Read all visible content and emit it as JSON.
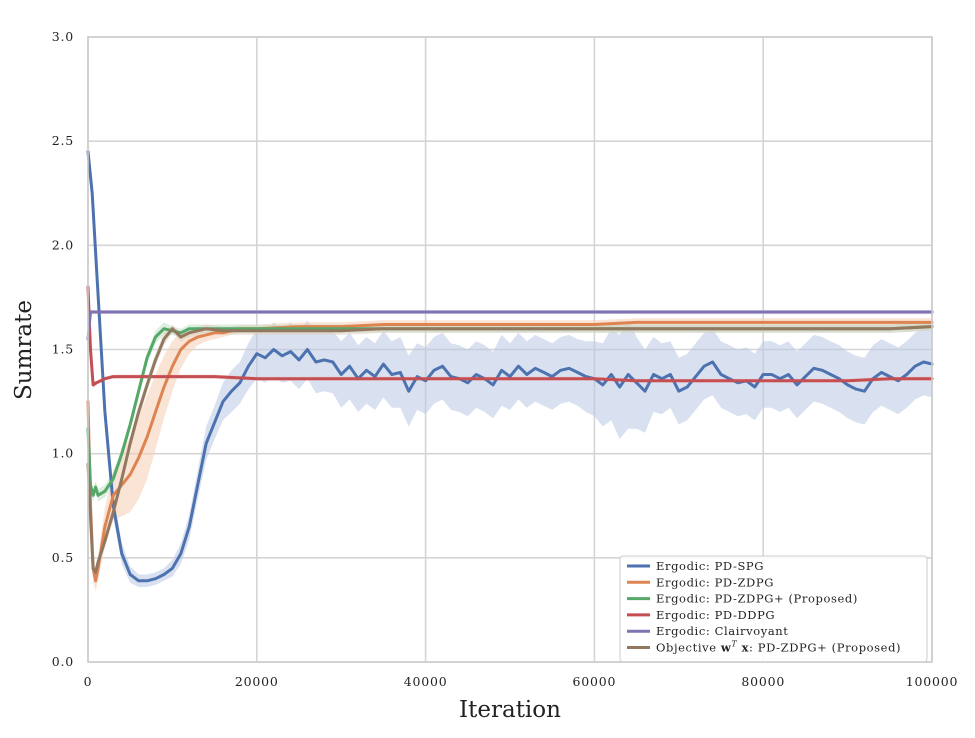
{
  "chart_data": {
    "type": "line",
    "title": "",
    "xlabel": "Iteration",
    "ylabel": "Sumrate",
    "xlim": [
      0,
      100000
    ],
    "ylim": [
      0.0,
      3.0
    ],
    "xticks": [
      0,
      20000,
      40000,
      60000,
      80000,
      100000
    ],
    "xtick_labels": [
      "0",
      "20000",
      "40000",
      "60000",
      "80000",
      "100000"
    ],
    "yticks": [
      0.0,
      0.5,
      1.0,
      1.5,
      2.0,
      2.5,
      3.0
    ],
    "ytick_labels": [
      "0.0",
      "0.5",
      "1.0",
      "1.5",
      "2.0",
      "2.5",
      "3.0"
    ],
    "grid": true,
    "legend_position": "bottom-right",
    "series": [
      {
        "name": "Ergodic: PD-SPG",
        "color": "#4c72b0",
        "band_color": "#b9c8e6",
        "x": [
          0,
          500,
          1000,
          2000,
          3000,
          4000,
          5000,
          6000,
          7000,
          8000,
          9000,
          10000,
          11000,
          12000,
          13000,
          14000,
          15000,
          16000,
          17000,
          18000,
          19000,
          20000,
          21000,
          22000,
          23000,
          24000,
          25000,
          26000,
          27000,
          28000,
          29000,
          30000,
          31000,
          32000,
          33000,
          34000,
          35000,
          36000,
          37000,
          38000,
          39000,
          40000,
          41000,
          42000,
          43000,
          44000,
          45000,
          46000,
          47000,
          48000,
          49000,
          50000,
          51000,
          52000,
          53000,
          54000,
          55000,
          56000,
          57000,
          58000,
          59000,
          60000,
          61000,
          62000,
          63000,
          64000,
          65000,
          66000,
          67000,
          68000,
          69000,
          70000,
          71000,
          72000,
          73000,
          74000,
          75000,
          76000,
          77000,
          78000,
          79000,
          80000,
          81000,
          82000,
          83000,
          84000,
          85000,
          86000,
          87000,
          88000,
          89000,
          90000,
          91000,
          92000,
          93000,
          94000,
          95000,
          96000,
          97000,
          98000,
          99000,
          100000
        ],
        "y": [
          2.45,
          2.25,
          1.9,
          1.2,
          0.75,
          0.52,
          0.42,
          0.39,
          0.39,
          0.4,
          0.42,
          0.45,
          0.52,
          0.65,
          0.85,
          1.05,
          1.15,
          1.25,
          1.3,
          1.34,
          1.42,
          1.48,
          1.46,
          1.5,
          1.47,
          1.49,
          1.45,
          1.5,
          1.44,
          1.45,
          1.44,
          1.38,
          1.42,
          1.36,
          1.4,
          1.37,
          1.43,
          1.38,
          1.39,
          1.3,
          1.37,
          1.35,
          1.4,
          1.42,
          1.37,
          1.36,
          1.34,
          1.38,
          1.36,
          1.33,
          1.4,
          1.37,
          1.42,
          1.38,
          1.41,
          1.39,
          1.37,
          1.4,
          1.41,
          1.39,
          1.37,
          1.36,
          1.33,
          1.38,
          1.32,
          1.38,
          1.34,
          1.3,
          1.38,
          1.36,
          1.38,
          1.3,
          1.32,
          1.37,
          1.42,
          1.44,
          1.38,
          1.36,
          1.34,
          1.35,
          1.32,
          1.38,
          1.38,
          1.36,
          1.38,
          1.33,
          1.37,
          1.41,
          1.4,
          1.38,
          1.36,
          1.33,
          1.31,
          1.3,
          1.36,
          1.39,
          1.37,
          1.35,
          1.38,
          1.42,
          1.44,
          1.43
        ],
        "band": [
          0.0,
          0.03,
          0.05,
          0.06,
          0.06,
          0.05,
          0.04,
          0.03,
          0.03,
          0.03,
          0.03,
          0.04,
          0.05,
          0.06,
          0.07,
          0.08,
          0.08,
          0.09,
          0.1,
          0.1,
          0.11,
          0.12,
          0.12,
          0.13,
          0.13,
          0.14,
          0.14,
          0.14,
          0.15,
          0.15,
          0.15,
          0.16,
          0.16,
          0.16,
          0.16,
          0.16,
          0.16,
          0.16,
          0.17,
          0.17,
          0.16,
          0.16,
          0.16,
          0.16,
          0.16,
          0.16,
          0.16,
          0.16,
          0.16,
          0.16,
          0.17,
          0.16,
          0.16,
          0.16,
          0.16,
          0.16,
          0.16,
          0.16,
          0.16,
          0.16,
          0.17,
          0.18,
          0.2,
          0.22,
          0.25,
          0.26,
          0.22,
          0.2,
          0.18,
          0.17,
          0.16,
          0.16,
          0.16,
          0.16,
          0.16,
          0.16,
          0.16,
          0.16,
          0.16,
          0.16,
          0.16,
          0.16,
          0.16,
          0.16,
          0.16,
          0.16,
          0.16,
          0.16,
          0.16,
          0.16,
          0.16,
          0.16,
          0.16,
          0.16,
          0.16,
          0.16,
          0.16,
          0.16,
          0.16,
          0.16,
          0.16,
          0.16
        ]
      },
      {
        "name": "Ergodic: PD-ZDPG",
        "color": "#dd8452",
        "band_color": "#f6cdb3",
        "x": [
          0,
          300,
          600,
          900,
          1200,
          2000,
          3000,
          4000,
          5000,
          6000,
          7000,
          8000,
          9000,
          10000,
          11000,
          12000,
          13000,
          14000,
          15000,
          16000,
          17000,
          18000,
          20000,
          25000,
          30000,
          35000,
          40000,
          45000,
          50000,
          55000,
          60000,
          65000,
          70000,
          75000,
          80000,
          85000,
          90000,
          95000,
          100000
        ],
        "y": [
          1.25,
          0.75,
          0.45,
          0.39,
          0.45,
          0.65,
          0.8,
          0.85,
          0.9,
          0.98,
          1.08,
          1.2,
          1.32,
          1.42,
          1.5,
          1.54,
          1.56,
          1.57,
          1.58,
          1.58,
          1.59,
          1.6,
          1.6,
          1.61,
          1.61,
          1.62,
          1.62,
          1.62,
          1.62,
          1.62,
          1.62,
          1.63,
          1.63,
          1.63,
          1.63,
          1.63,
          1.63,
          1.63,
          1.63
        ],
        "band": [
          0.05,
          0.07,
          0.06,
          0.05,
          0.06,
          0.09,
          0.12,
          0.15,
          0.18,
          0.2,
          0.2,
          0.18,
          0.15,
          0.12,
          0.09,
          0.06,
          0.04,
          0.03,
          0.03,
          0.02,
          0.02,
          0.02,
          0.02,
          0.02,
          0.02,
          0.02,
          0.02,
          0.02,
          0.02,
          0.02,
          0.02,
          0.02,
          0.02,
          0.02,
          0.02,
          0.02,
          0.02,
          0.02,
          0.02
        ]
      },
      {
        "name": "Ergodic: PD-ZDPG+ (Proposed)",
        "color": "#55a868",
        "band_color": "#bfe0c6",
        "x": [
          0,
          300,
          600,
          900,
          1200,
          2000,
          3000,
          4000,
          5000,
          6000,
          7000,
          8000,
          9000,
          10000,
          11000,
          12000,
          14000,
          16000,
          18000,
          20000,
          25000,
          30000,
          35000,
          40000,
          45000,
          50000,
          55000,
          60000,
          65000,
          70000,
          75000,
          80000,
          85000,
          90000,
          95000,
          100000
        ],
        "y": [
          1.12,
          0.85,
          0.8,
          0.84,
          0.8,
          0.82,
          0.88,
          1.0,
          1.14,
          1.3,
          1.46,
          1.56,
          1.6,
          1.59,
          1.58,
          1.6,
          1.6,
          1.6,
          1.6,
          1.6,
          1.6,
          1.6,
          1.6,
          1.6,
          1.6,
          1.6,
          1.6,
          1.6,
          1.6,
          1.6,
          1.6,
          1.6,
          1.6,
          1.6,
          1.6,
          1.61
        ],
        "band": [
          0.03,
          0.03,
          0.03,
          0.03,
          0.03,
          0.03,
          0.03,
          0.03,
          0.03,
          0.03,
          0.03,
          0.03,
          0.03,
          0.02,
          0.02,
          0.02,
          0.02,
          0.02,
          0.02,
          0.02,
          0.02,
          0.02,
          0.02,
          0.02,
          0.02,
          0.02,
          0.02,
          0.02,
          0.02,
          0.02,
          0.02,
          0.02,
          0.02,
          0.02,
          0.02,
          0.02
        ]
      },
      {
        "name": "Ergodic: PD-DDPG",
        "color": "#c44e52",
        "band_color": "#ecc2c3",
        "x": [
          0,
          300,
          600,
          1000,
          2000,
          3000,
          5000,
          8000,
          10000,
          15000,
          20000,
          25000,
          30000,
          35000,
          40000,
          45000,
          50000,
          55000,
          60000,
          65000,
          70000,
          75000,
          80000,
          85000,
          90000,
          95000,
          100000
        ],
        "y": [
          1.8,
          1.5,
          1.33,
          1.34,
          1.36,
          1.37,
          1.37,
          1.37,
          1.37,
          1.37,
          1.36,
          1.36,
          1.36,
          1.36,
          1.36,
          1.36,
          1.36,
          1.36,
          1.36,
          1.35,
          1.35,
          1.35,
          1.35,
          1.35,
          1.35,
          1.36,
          1.36
        ],
        "band": [
          0.0,
          0.03,
          0.02,
          0.01,
          0.01,
          0.01,
          0.01,
          0.01,
          0.01,
          0.01,
          0.01,
          0.01,
          0.01,
          0.01,
          0.01,
          0.01,
          0.01,
          0.01,
          0.01,
          0.01,
          0.01,
          0.01,
          0.01,
          0.01,
          0.01,
          0.01,
          0.01
        ]
      },
      {
        "name": "Ergodic: Clairvoyant",
        "color": "#8172b3",
        "band_color": "#d3cde6",
        "x": [
          0,
          300,
          600,
          1000,
          5000,
          10000,
          15000,
          20000,
          25000,
          30000,
          35000,
          40000,
          45000,
          50000,
          55000,
          60000,
          65000,
          70000,
          75000,
          80000,
          85000,
          90000,
          95000,
          100000
        ],
        "y": [
          1.55,
          1.68,
          1.68,
          1.68,
          1.68,
          1.68,
          1.68,
          1.68,
          1.68,
          1.68,
          1.68,
          1.68,
          1.68,
          1.68,
          1.68,
          1.68,
          1.68,
          1.68,
          1.68,
          1.68,
          1.68,
          1.68,
          1.68,
          1.68
        ],
        "band": [
          0.0,
          0.01,
          0.01,
          0.01,
          0.01,
          0.01,
          0.01,
          0.01,
          0.01,
          0.01,
          0.01,
          0.01,
          0.01,
          0.01,
          0.01,
          0.01,
          0.01,
          0.01,
          0.01,
          0.01,
          0.01,
          0.01,
          0.01,
          0.01
        ]
      },
      {
        "name": "Objective w^T x: PD-ZDPG+ (Proposed)",
        "color": "#937860",
        "band_color": "#dccfc2",
        "x": [
          0,
          300,
          600,
          900,
          1200,
          2000,
          3000,
          4000,
          5000,
          6000,
          7000,
          8000,
          9000,
          10000,
          11000,
          12000,
          14000,
          16000,
          18000,
          20000,
          25000,
          30000,
          35000,
          40000,
          45000,
          50000,
          55000,
          60000,
          65000,
          70000,
          75000,
          80000,
          85000,
          90000,
          95000,
          100000
        ],
        "y": [
          0.95,
          0.7,
          0.45,
          0.43,
          0.48,
          0.58,
          0.72,
          0.88,
          1.05,
          1.2,
          1.33,
          1.45,
          1.55,
          1.6,
          1.56,
          1.58,
          1.6,
          1.59,
          1.59,
          1.59,
          1.59,
          1.59,
          1.6,
          1.6,
          1.6,
          1.6,
          1.6,
          1.6,
          1.6,
          1.6,
          1.6,
          1.6,
          1.6,
          1.6,
          1.6,
          1.61
        ],
        "band": [
          0.03,
          0.03,
          0.03,
          0.03,
          0.03,
          0.03,
          0.03,
          0.03,
          0.03,
          0.03,
          0.03,
          0.03,
          0.03,
          0.02,
          0.02,
          0.02,
          0.02,
          0.02,
          0.02,
          0.02,
          0.02,
          0.02,
          0.02,
          0.02,
          0.02,
          0.02,
          0.02,
          0.02,
          0.02,
          0.02,
          0.02,
          0.02,
          0.02,
          0.02,
          0.02,
          0.02
        ]
      }
    ]
  },
  "style": {
    "grid_color": "#d5d5d5",
    "frame_color": "#cccccc",
    "legend_border_color": "#cccccc"
  }
}
